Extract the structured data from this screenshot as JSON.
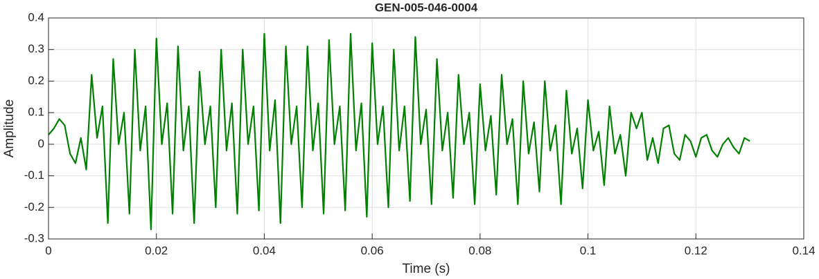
{
  "chart_data": {
    "type": "line",
    "title": "GEN-005-046-0004",
    "xlabel": "Time (s)",
    "ylabel": "Amplitude",
    "x": [
      0,
      0.001,
      0.002,
      0.003,
      0.004,
      0.005,
      0.006,
      0.007,
      0.008,
      0.009,
      0.01,
      0.011,
      0.012,
      0.013,
      0.014,
      0.015,
      0.016,
      0.017,
      0.018,
      0.019,
      0.02,
      0.021,
      0.022,
      0.023,
      0.024,
      0.025,
      0.026,
      0.027,
      0.028,
      0.029,
      0.03,
      0.031,
      0.032,
      0.033,
      0.034,
      0.035,
      0.036,
      0.037,
      0.038,
      0.039,
      0.04,
      0.041,
      0.042,
      0.043,
      0.044,
      0.045,
      0.046,
      0.047,
      0.048,
      0.049,
      0.05,
      0.051,
      0.052,
      0.053,
      0.054,
      0.055,
      0.056,
      0.057,
      0.058,
      0.059,
      0.06,
      0.061,
      0.062,
      0.063,
      0.064,
      0.065,
      0.066,
      0.067,
      0.068,
      0.069,
      0.07,
      0.071,
      0.072,
      0.073,
      0.074,
      0.075,
      0.076,
      0.077,
      0.078,
      0.079,
      0.08,
      0.081,
      0.082,
      0.083,
      0.084,
      0.085,
      0.086,
      0.087,
      0.088,
      0.089,
      0.09,
      0.091,
      0.092,
      0.093,
      0.094,
      0.095,
      0.096,
      0.097,
      0.098,
      0.099,
      0.1,
      0.101,
      0.102,
      0.103,
      0.104,
      0.105,
      0.106,
      0.107,
      0.108,
      0.109,
      0.11,
      0.111,
      0.112,
      0.113,
      0.114,
      0.115,
      0.116,
      0.117,
      0.118,
      0.119,
      0.12,
      0.121,
      0.122,
      0.123,
      0.124,
      0.125,
      0.126,
      0.127,
      0.128,
      0.129,
      0.13
    ],
    "series": [
      {
        "color": "#008000",
        "values": [
          0.03,
          0.05,
          0.08,
          0.06,
          -0.03,
          -0.06,
          0.02,
          -0.08,
          0.22,
          0.02,
          0.12,
          -0.25,
          0.27,
          0.0,
          0.1,
          -0.22,
          0.3,
          -0.02,
          0.12,
          -0.27,
          0.335,
          0.0,
          0.13,
          -0.22,
          0.31,
          -0.02,
          0.12,
          -0.25,
          0.23,
          0.0,
          0.12,
          -0.2,
          0.3,
          -0.02,
          0.13,
          -0.22,
          0.3,
          0.0,
          0.12,
          -0.21,
          0.35,
          -0.02,
          0.14,
          -0.25,
          0.31,
          0.0,
          0.12,
          -0.2,
          0.31,
          -0.02,
          0.13,
          -0.22,
          0.33,
          0.0,
          0.12,
          -0.21,
          0.35,
          -0.02,
          0.13,
          -0.23,
          0.32,
          0.0,
          0.12,
          -0.2,
          0.3,
          -0.02,
          0.12,
          -0.18,
          0.34,
          0.0,
          0.11,
          -0.19,
          0.27,
          -0.02,
          0.1,
          -0.17,
          0.22,
          0.0,
          0.1,
          -0.19,
          0.19,
          -0.02,
          0.09,
          -0.16,
          0.22,
          0.0,
          0.08,
          -0.19,
          0.2,
          -0.03,
          0.07,
          -0.15,
          0.2,
          -0.02,
          0.06,
          -0.19,
          0.17,
          -0.03,
          0.05,
          -0.14,
          0.14,
          -0.02,
          0.04,
          -0.13,
          0.12,
          -0.03,
          0.03,
          -0.1,
          0.1,
          0.05,
          0.1,
          -0.05,
          0.02,
          -0.06,
          0.05,
          0.06,
          -0.03,
          -0.05,
          0.03,
          0.01,
          -0.04,
          0.02,
          0.03,
          -0.02,
          -0.04,
          0.0,
          0.02,
          -0.01,
          -0.03,
          0.02,
          0.01
        ]
      }
    ],
    "xlim": [
      0,
      0.14
    ],
    "xticks": [
      0,
      0.02,
      0.04,
      0.06,
      0.08,
      0.1,
      0.12,
      0.14
    ],
    "ylim": [
      -0.3,
      0.4
    ],
    "yticks": [
      -0.3,
      -0.2,
      -0.1,
      0,
      0.1,
      0.2,
      0.3,
      0.4
    ],
    "grid": true
  }
}
